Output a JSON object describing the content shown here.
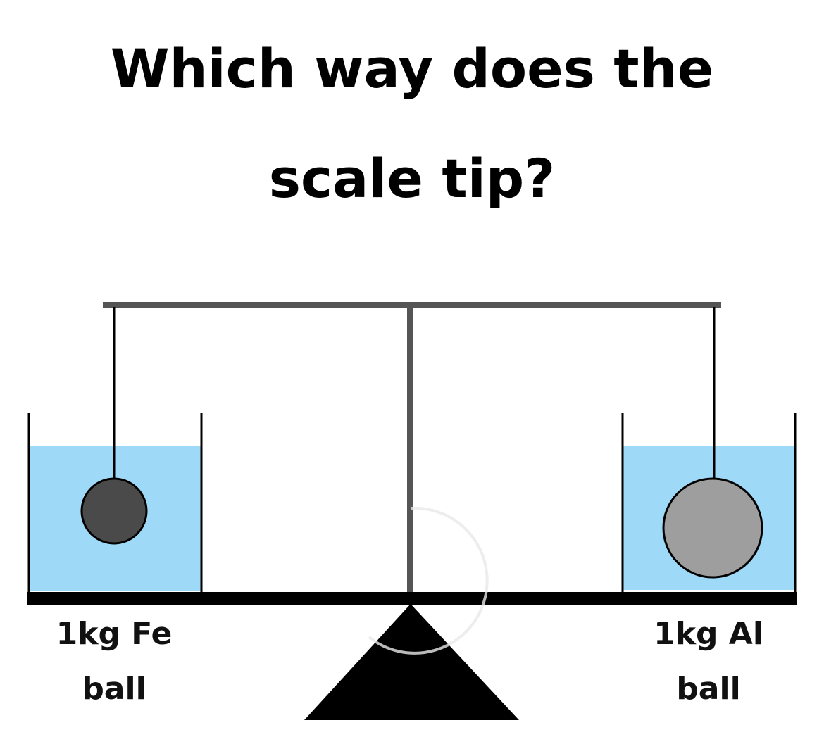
{
  "title": {
    "line1": "Which way does the",
    "line2": "scale tip?"
  },
  "left_pan": {
    "label_line1": "1kg Fe",
    "label_line2": "ball",
    "ball_color": "#4a4a4a",
    "water_color": "#9ed9f8"
  },
  "right_pan": {
    "label_line1": "1kg Al",
    "label_line2": "ball",
    "ball_color": "#9e9e9e",
    "water_color": "#9ed9f8"
  },
  "colors": {
    "beam": "#555555",
    "base": "#000000",
    "fulcrum": "#000000",
    "string": "#000000"
  }
}
